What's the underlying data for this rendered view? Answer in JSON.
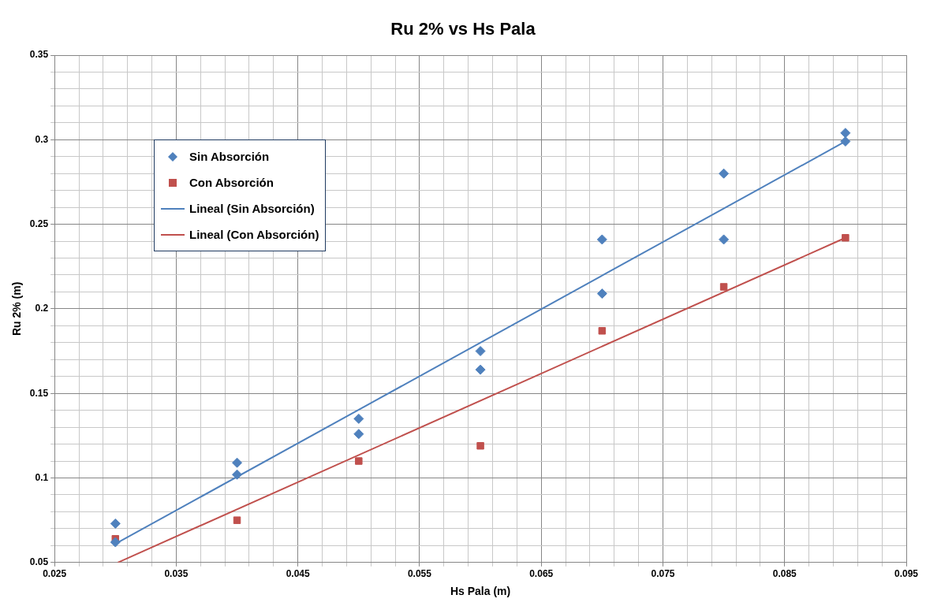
{
  "chart_data": {
    "type": "scatter",
    "title": "Ru 2% vs Hs Pala",
    "xlabel": "Hs Pala (m)",
    "ylabel": "Ru 2% (m)",
    "xlim": [
      0.025,
      0.095
    ],
    "xticks": [
      0.025,
      {
        "value": 0.027,
        "label": null
      },
      {
        "value": 0.029,
        "label": null
      },
      {
        "value": 0.031,
        "label": null
      },
      {
        "value": 0.033,
        "label": null
      },
      0.035,
      {
        "value": 0.037,
        "label": null
      },
      {
        "value": 0.039,
        "label": null
      },
      {
        "value": 0.041,
        "label": null
      },
      {
        "value": 0.043,
        "label": null
      },
      0.045,
      {
        "value": 0.047,
        "label": null
      },
      {
        "value": 0.049,
        "label": null
      },
      {
        "value": 0.051,
        "label": null
      },
      {
        "value": 0.053,
        "label": null
      },
      0.055,
      {
        "value": 0.057,
        "label": null
      },
      {
        "value": 0.059,
        "label": null
      },
      {
        "value": 0.061,
        "label": null
      },
      {
        "value": 0.063,
        "label": null
      },
      0.065,
      {
        "value": 0.067,
        "label": null
      },
      {
        "value": 0.069,
        "label": null
      },
      {
        "value": 0.071,
        "label": null
      },
      {
        "value": 0.073,
        "label": null
      },
      0.075,
      {
        "value": 0.077,
        "label": null
      },
      {
        "value": 0.079,
        "label": null
      },
      {
        "value": 0.081,
        "label": null
      },
      {
        "value": 0.083,
        "label": null
      },
      0.085,
      {
        "value": 0.087,
        "label": null
      },
      {
        "value": 0.089,
        "label": null
      },
      {
        "value": 0.091,
        "label": null
      },
      {
        "value": 0.093,
        "label": null
      },
      0.095
    ],
    "ylim": [
      0.05,
      0.35
    ],
    "yticks": [
      0.05,
      {
        "value": 0.06,
        "label": null
      },
      {
        "value": 0.07,
        "label": null
      },
      {
        "value": 0.08,
        "label": null
      },
      {
        "value": 0.09,
        "label": null
      },
      0.1,
      {
        "value": 0.11,
        "label": null
      },
      {
        "value": 0.12,
        "label": null
      },
      {
        "value": 0.13,
        "label": null
      },
      {
        "value": 0.14,
        "label": null
      },
      0.15,
      {
        "value": 0.16,
        "label": null
      },
      {
        "value": 0.17,
        "label": null
      },
      {
        "value": 0.18,
        "label": null
      },
      {
        "value": 0.19,
        "label": null
      },
      0.2,
      {
        "value": 0.21,
        "label": null
      },
      {
        "value": 0.22,
        "label": null
      },
      {
        "value": 0.23,
        "label": null
      },
      {
        "value": 0.24,
        "label": null
      },
      0.25,
      {
        "value": 0.26,
        "label": null
      },
      {
        "value": 0.27,
        "label": null
      },
      {
        "value": 0.28,
        "label": null
      },
      {
        "value": 0.29,
        "label": null
      },
      0.3,
      {
        "value": 0.31,
        "label": null
      },
      {
        "value": 0.32,
        "label": null
      },
      {
        "value": 0.33,
        "label": null
      },
      {
        "value": 0.34,
        "label": null
      },
      0.35
    ],
    "grid": true,
    "legend": "top left",
    "series": [
      {
        "name": "Sin Absorción",
        "marker": "diamond",
        "color": "#4f81bd",
        "x": [
          0.03,
          0.03,
          0.04,
          0.04,
          0.05,
          0.05,
          0.06,
          0.06,
          0.07,
          0.07,
          0.08,
          0.08,
          0.09,
          0.09
        ],
        "values": [
          0.073,
          0.062,
          0.109,
          0.102,
          0.135,
          0.126,
          0.175,
          0.164,
          0.241,
          0.209,
          0.28,
          0.241,
          0.304,
          0.299
        ]
      },
      {
        "name": "Con Absorción",
        "marker": "square",
        "color": "#c0504d",
        "x": [
          0.03,
          0.04,
          0.05,
          0.06,
          0.07,
          0.08,
          0.09
        ],
        "values": [
          0.064,
          0.075,
          0.11,
          0.119,
          0.187,
          0.213,
          0.242
        ]
      },
      {
        "name": "Lineal (Sin Absorción)",
        "type": "line",
        "marker": "none",
        "color": "#4f81bd",
        "x": [
          0.03,
          0.09
        ],
        "values": [
          0.061,
          0.299
        ]
      },
      {
        "name": "Lineal (Con Absorción)",
        "type": "line",
        "marker": "none",
        "color": "#c0504d",
        "x": [
          0.0302,
          0.09
        ],
        "values": [
          0.05,
          0.242
        ]
      }
    ]
  }
}
